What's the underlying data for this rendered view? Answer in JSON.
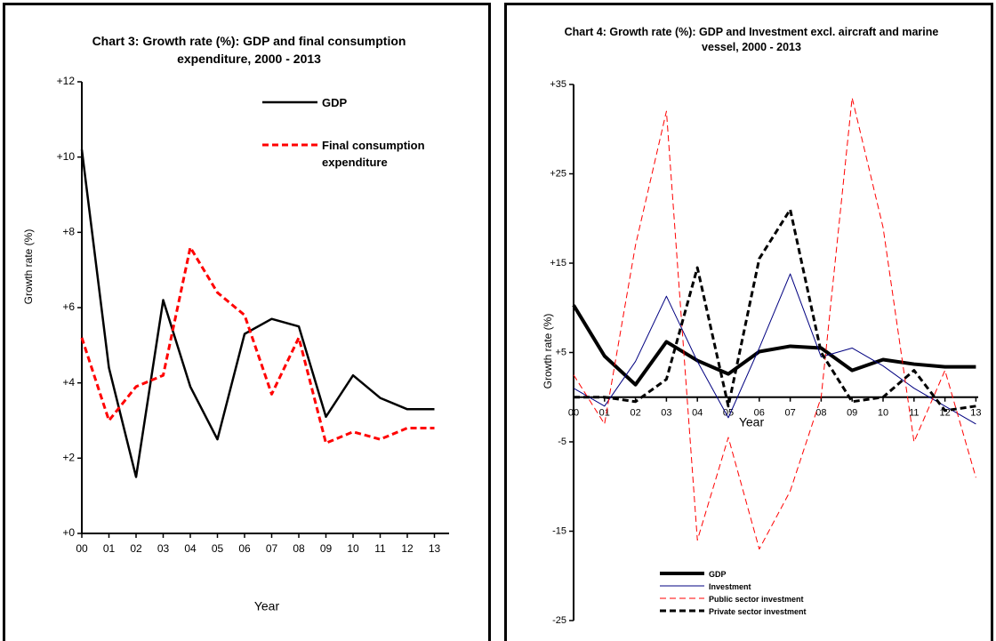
{
  "chart_data": [
    {
      "type": "line",
      "title": "Chart 3: Growth rate (%): GDP and final consumption expenditure, 2000 - 2013",
      "xlabel": "Year",
      "ylabel": "Growth rate (%)",
      "categories": [
        "00",
        "01",
        "02",
        "03",
        "04",
        "05",
        "06",
        "07",
        "08",
        "09",
        "10",
        "11",
        "12",
        "13"
      ],
      "ylim": [
        0,
        12
      ],
      "yticks": [
        {
          "value": 0,
          "label": "+0"
        },
        {
          "value": 2,
          "label": "+2"
        },
        {
          "value": 4,
          "label": "+4"
        },
        {
          "value": 6,
          "label": "+6"
        },
        {
          "value": 8,
          "label": "+8"
        },
        {
          "value": 10,
          "label": "+10"
        },
        {
          "value": 12,
          "label": "+12"
        }
      ],
      "legend": "upper right",
      "series": [
        {
          "name": "GDP",
          "color": "#000000",
          "linestyle": "solid",
          "linewidth": 2.5,
          "values": [
            10.2,
            4.4,
            1.5,
            6.2,
            3.9,
            2.5,
            5.3,
            5.7,
            5.5,
            3.1,
            4.2,
            3.6,
            3.3,
            3.3
          ]
        },
        {
          "name": "Final consumption expenditure",
          "color": "#ff0000",
          "linestyle": "dashed",
          "linewidth": 3,
          "values": [
            5.2,
            3.0,
            3.9,
            4.2,
            7.6,
            6.4,
            5.8,
            3.7,
            5.2,
            2.4,
            2.7,
            2.5,
            2.8,
            2.8
          ]
        }
      ]
    },
    {
      "type": "line",
      "title": "Chart 4: Growth rate (%): GDP and Investment excl. aircraft and marine vessel, 2000 - 2013",
      "xlabel": "Year",
      "ylabel": "Growth rate (%)",
      "categories": [
        "00",
        "01",
        "02",
        "03",
        "04",
        "05",
        "06",
        "07",
        "08",
        "09",
        "10",
        "11",
        "12",
        "13"
      ],
      "ylim": [
        -25,
        35
      ],
      "yticks": [
        -25,
        -15,
        -5,
        {
          "value": 5,
          "label": "+5"
        },
        {
          "value": 15,
          "label": "+15"
        },
        {
          "value": 25,
          "label": "+25"
        },
        {
          "value": 35,
          "label": "+35"
        }
      ],
      "legend": "lower left",
      "series": [
        {
          "name": "GDP",
          "color": "#000000",
          "linestyle": "solid",
          "linewidth": 4,
          "values": [
            10.3,
            4.6,
            1.4,
            6.2,
            4.1,
            2.6,
            5.1,
            5.7,
            5.5,
            3.0,
            4.2,
            3.7,
            3.4,
            3.4
          ]
        },
        {
          "name": "Investment",
          "color": "#000080",
          "linestyle": "solid",
          "linewidth": 1,
          "values": [
            1,
            -1,
            4,
            11.3,
            4,
            -2.3,
            5.5,
            13.8,
            4.5,
            5.5,
            3.5,
            1,
            -1,
            -3
          ]
        },
        {
          "name": "Public sector investment",
          "color": "#ff0000",
          "linestyle": "dashed",
          "linewidth": 1,
          "values": [
            2.5,
            -3,
            17,
            32,
            -16,
            -4.5,
            -17,
            -10.5,
            0,
            33.5,
            19,
            -5,
            3,
            -9
          ]
        },
        {
          "name": "Private sector investment",
          "color": "#000000",
          "linestyle": "dashed",
          "linewidth": 3,
          "values": [
            0,
            0,
            -0.5,
            2,
            14.5,
            -1,
            15.5,
            21,
            5,
            -0.5,
            0,
            3,
            -1.5,
            -1
          ]
        }
      ]
    }
  ]
}
